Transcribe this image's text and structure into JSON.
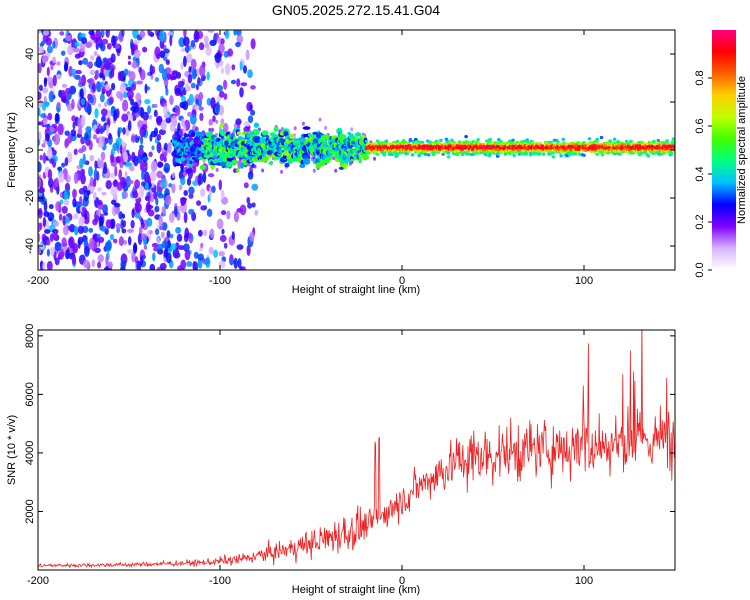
{
  "title": "GN05.2025.272.15.41.G04",
  "chart_data": [
    {
      "type": "heatmap",
      "xlabel": "Height of straight line (km)",
      "ylabel": "Frequency (Hz)",
      "xlim": [
        -200,
        150
      ],
      "ylim": [
        -50,
        50
      ],
      "xticks": [
        -200,
        -100,
        0,
        100
      ],
      "yticks": [
        -40,
        -20,
        0,
        20,
        40
      ],
      "colorbar": {
        "label": "Normalized spectral amplitude",
        "range": [
          0,
          1
        ],
        "ticks": [
          0.0,
          0.2,
          0.4,
          0.6,
          0.8
        ],
        "colors": [
          "#ffffff",
          "#d9b3ff",
          "#8000ff",
          "#0000ff",
          "#00c0ff",
          "#00ff80",
          "#40ff00",
          "#c0ff00",
          "#ffd000",
          "#ff6000",
          "#ff0000",
          "#ff0080"
        ]
      },
      "features": [
        {
          "name": "noise",
          "x_range": [
            -200,
            -80
          ],
          "y_range": [
            -50,
            50
          ],
          "amplitude": 0.12
        },
        {
          "name": "signal-band",
          "x_range": [
            -125,
            150
          ],
          "center_hz": 1,
          "width_hz": 6,
          "amplitude": 0.9
        }
      ]
    },
    {
      "type": "line",
      "xlabel": "Height of straight line (km)",
      "ylabel": "SNR (10 * v/v)",
      "xlim": [
        -200,
        150
      ],
      "ylim": [
        0,
        8200
      ],
      "xticks": [
        -200,
        -100,
        0,
        100
      ],
      "yticks": [
        2000,
        4000,
        6000,
        8000
      ],
      "color": "#ee2222",
      "trend": {
        "x": [
          -200,
          -150,
          -110,
          -90,
          -70,
          -50,
          -35,
          -20,
          -10,
          0,
          10,
          20,
          30,
          50,
          70,
          90,
          110,
          130,
          150
        ],
        "y": [
          150,
          180,
          250,
          350,
          600,
          900,
          1200,
          1500,
          1900,
          2400,
          2900,
          3300,
          3700,
          3950,
          4100,
          4200,
          4300,
          4400,
          4500
        ]
      }
    }
  ]
}
